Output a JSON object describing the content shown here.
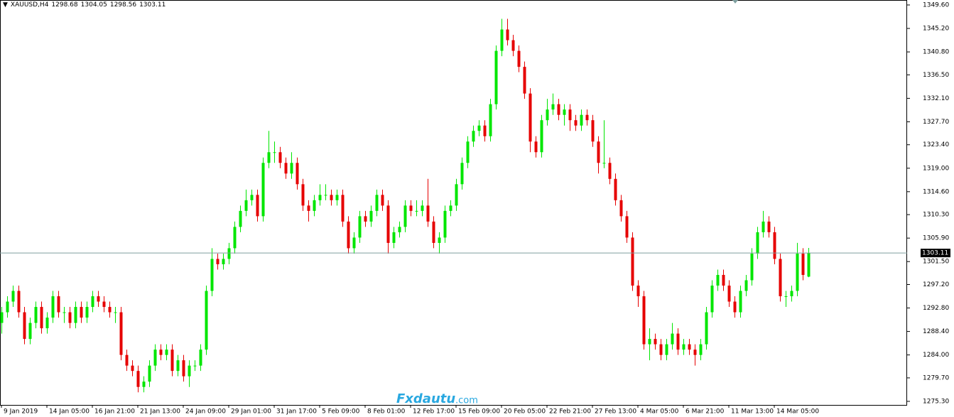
{
  "chart_data": {
    "type": "candlestick",
    "symbol": "XAUUSD,H4",
    "watermark_brand": "Fxdautu",
    "watermark_domain": ".com",
    "up_color": "#00e600",
    "down_color": "#e60000",
    "price_line_color": "#7f9f9f",
    "grid": false,
    "ylim": [
      1274.63,
      1350.53
    ],
    "yticks": [
      {
        "value": 1349.6,
        "label": "1349.60"
      },
      {
        "value": 1345.2,
        "label": "1345.20"
      },
      {
        "value": 1340.8,
        "label": "1340.80"
      },
      {
        "value": 1336.5,
        "label": "1336.50"
      },
      {
        "value": 1332.1,
        "label": "1332.10"
      },
      {
        "value": 1327.7,
        "label": "1327.70"
      },
      {
        "value": 1323.4,
        "label": "1323.40"
      },
      {
        "value": 1319.0,
        "label": "1319.00"
      },
      {
        "value": 1314.6,
        "label": "1314.60"
      },
      {
        "value": 1310.3,
        "label": "1310.30"
      },
      {
        "value": 1305.9,
        "label": "1305.90"
      },
      {
        "value": 1301.5,
        "label": "1301.50"
      },
      {
        "value": 1297.2,
        "label": "1297.20"
      },
      {
        "value": 1292.8,
        "label": "1292.80"
      },
      {
        "value": 1288.4,
        "label": "1288.40"
      },
      {
        "value": 1284.0,
        "label": "1284.00"
      },
      {
        "value": 1279.7,
        "label": "1279.70"
      },
      {
        "value": 1275.3,
        "label": "1275.30"
      }
    ],
    "categories": [
      "9 Jan 2019",
      null,
      null,
      null,
      null,
      null,
      null,
      null,
      "14 Jan 05:00",
      null,
      null,
      null,
      null,
      null,
      null,
      null,
      "16 Jan 21:00",
      null,
      null,
      null,
      null,
      null,
      null,
      null,
      "21 Jan 13:00",
      null,
      null,
      null,
      null,
      null,
      null,
      null,
      "24 Jan 09:00",
      null,
      null,
      null,
      null,
      null,
      null,
      null,
      "29 Jan 01:00",
      null,
      null,
      null,
      null,
      null,
      null,
      null,
      "31 Jan 17:00",
      null,
      null,
      null,
      null,
      null,
      null,
      null,
      "5 Feb 09:00",
      null,
      null,
      null,
      null,
      null,
      null,
      null,
      "8 Feb 01:00",
      null,
      null,
      null,
      null,
      null,
      null,
      null,
      "12 Feb 17:00",
      null,
      null,
      null,
      null,
      null,
      null,
      null,
      "15 Feb 09:00",
      null,
      null,
      null,
      null,
      null,
      null,
      null,
      "20 Feb 05:00",
      null,
      null,
      null,
      null,
      null,
      null,
      null,
      "22 Feb 21:00",
      null,
      null,
      null,
      null,
      null,
      null,
      null,
      "27 Feb 13:00",
      null,
      null,
      null,
      null,
      null,
      null,
      null,
      "4 Mar 05:00",
      null,
      null,
      null,
      null,
      null,
      null,
      null,
      "6 Mar 21:00",
      null,
      null,
      null,
      null,
      null,
      null,
      null,
      "11 Mar 13:00",
      null,
      null,
      null,
      null,
      null,
      null,
      null,
      "14 Mar 05:00",
      null,
      null,
      null,
      null,
      null,
      null
    ],
    "open": [
      1290,
      1292,
      1294,
      1296,
      1292,
      1287,
      1290,
      1293,
      1289,
      1291,
      1295,
      1292,
      1292,
      1290,
      1293,
      1291,
      1293,
      1295,
      1294,
      1293,
      1292,
      1292,
      1284,
      1282,
      1281,
      1278,
      1279,
      1282,
      1285,
      1284,
      1285,
      1281,
      1283,
      1280,
      1282,
      1282,
      1285,
      1296,
      1302,
      1301,
      1302,
      1304,
      1308,
      1311,
      1313,
      1314,
      1310,
      1320,
      1322,
      1322,
      1320,
      1318,
      1320,
      1316,
      1312,
      1311,
      1313,
      1314,
      1314,
      1313,
      1314,
      1309,
      1304,
      1306,
      1310,
      1309,
      1311,
      1314,
      1312,
      1305,
      1307,
      1308,
      1312,
      1311,
      1311,
      1312,
      1309,
      1305,
      1306,
      1311,
      1312,
      1316,
      1320,
      1324,
      1326,
      1327,
      1325,
      1331,
      1341,
      1345,
      1343,
      1341,
      1338,
      1333,
      1324,
      1322,
      1328,
      1330,
      1331,
      1329,
      1330,
      1328,
      1327,
      1329,
      1328,
      1324,
      1320,
      1320,
      1317,
      1313,
      1310,
      1306,
      1297,
      1295,
      1286,
      1287,
      1286,
      1284,
      1286,
      1288,
      1285,
      1286,
      1285,
      1284,
      1286,
      1292,
      1297,
      1299,
      1297,
      1294,
      1292,
      1296,
      1298,
      1303,
      1307,
      1309,
      1307,
      1302,
      1295,
      1295,
      1296,
      1303,
      1298.68
    ],
    "high": [
      1293,
      1295,
      1297,
      1297,
      1293,
      1291,
      1294,
      1294,
      1292,
      1296,
      1296,
      1293,
      1293,
      1294,
      1294,
      1294,
      1296,
      1296,
      1295,
      1294,
      1293,
      1293,
      1285,
      1283,
      1282,
      1280,
      1283,
      1286,
      1286,
      1286,
      1286,
      1284,
      1284,
      1283,
      1283,
      1286,
      1297,
      1304,
      1303,
      1303,
      1305,
      1309,
      1312,
      1315,
      1315,
      1315,
      1321,
      1326,
      1324,
      1323,
      1321,
      1322,
      1321,
      1317,
      1313,
      1314,
      1316,
      1316,
      1315,
      1315,
      1315,
      1310,
      1307,
      1311,
      1311,
      1312,
      1315,
      1315,
      1313,
      1308,
      1309,
      1313,
      1313,
      1313,
      1313,
      1317,
      1310,
      1307,
      1312,
      1313,
      1317,
      1321,
      1325,
      1327,
      1328,
      1328,
      1332,
      1342,
      1347,
      1347,
      1344,
      1342,
      1339,
      1334,
      1325,
      1329,
      1332,
      1333,
      1332,
      1331,
      1331,
      1329,
      1330,
      1330,
      1329,
      1325,
      1328,
      1321,
      1318,
      1314,
      1311,
      1307,
      1298,
      1296,
      1289,
      1288,
      1287,
      1287,
      1290,
      1289,
      1287,
      1287,
      1286,
      1287,
      1293,
      1298,
      1300,
      1300,
      1298,
      1295,
      1297,
      1299,
      1304,
      1308,
      1311,
      1310,
      1308,
      1303,
      1296,
      1297,
      1305,
      1304,
      1304.05
    ],
    "low": [
      1288,
      1291,
      1293,
      1291,
      1286,
      1286,
      1289,
      1288,
      1288,
      1290,
      1291,
      1290,
      1289,
      1289,
      1290,
      1290,
      1292,
      1293,
      1292,
      1291,
      1290,
      1283,
      1281,
      1280,
      1277,
      1277,
      1278,
      1281,
      1283,
      1283,
      1280,
      1280,
      1279,
      1278,
      1281,
      1281,
      1284,
      1295,
      1300,
      1300,
      1301,
      1303,
      1307,
      1310,
      1312,
      1309,
      1309,
      1319,
      1320,
      1319,
      1317,
      1317,
      1315,
      1311,
      1309,
      1310,
      1312,
      1313,
      1312,
      1312,
      1308,
      1303,
      1303,
      1305,
      1308,
      1308,
      1310,
      1311,
      1303,
      1304,
      1306,
      1307,
      1310,
      1310,
      1310,
      1308,
      1304,
      1303,
      1305,
      1310,
      1311,
      1315,
      1319,
      1323,
      1325,
      1324,
      1324,
      1330,
      1340,
      1342,
      1340,
      1337,
      1332,
      1322,
      1321,
      1321,
      1327,
      1329,
      1328,
      1327,
      1326,
      1326,
      1326,
      1327,
      1323,
      1318,
      1319,
      1316,
      1312,
      1309,
      1305,
      1296,
      1293,
      1285,
      1283,
      1285,
      1283,
      1283,
      1285,
      1284,
      1284,
      1284,
      1282,
      1283,
      1285,
      1291,
      1296,
      1296,
      1293,
      1291,
      1291,
      1295,
      1297,
      1302,
      1306,
      1306,
      1301,
      1294,
      1293,
      1294,
      1295,
      1298,
      1298.56
    ],
    "close": [
      1292,
      1294,
      1296,
      1292,
      1287,
      1290,
      1293,
      1289,
      1291,
      1295,
      1292,
      1292,
      1290,
      1293,
      1291,
      1293,
      1295,
      1294,
      1293,
      1292,
      1292,
      1284,
      1282,
      1281,
      1278,
      1279,
      1282,
      1285,
      1284,
      1285,
      1281,
      1283,
      1280,
      1282,
      1282,
      1285,
      1296,
      1302,
      1301,
      1302,
      1304,
      1308,
      1311,
      1313,
      1314,
      1310,
      1320,
      1322,
      1322,
      1320,
      1318,
      1320,
      1316,
      1312,
      1311,
      1313,
      1314,
      1314,
      1313,
      1314,
      1309,
      1304,
      1306,
      1310,
      1309,
      1311,
      1314,
      1312,
      1305,
      1307,
      1308,
      1312,
      1311,
      1311,
      1312,
      1309,
      1305,
      1306,
      1311,
      1312,
      1316,
      1320,
      1324,
      1326,
      1327,
      1325,
      1331,
      1341,
      1345,
      1343,
      1341,
      1338,
      1333,
      1324,
      1322,
      1328,
      1330,
      1331,
      1329,
      1330,
      1328,
      1327,
      1329,
      1328,
      1324,
      1320,
      1320,
      1317,
      1313,
      1310,
      1306,
      1297,
      1295,
      1286,
      1287,
      1286,
      1284,
      1286,
      1288,
      1285,
      1286,
      1285,
      1284,
      1286,
      1292,
      1297,
      1299,
      1297,
      1294,
      1292,
      1296,
      1298,
      1303,
      1307,
      1309,
      1307,
      1302,
      1295,
      1295,
      1296,
      1303,
      1299,
      1303.11
    ]
  }
}
